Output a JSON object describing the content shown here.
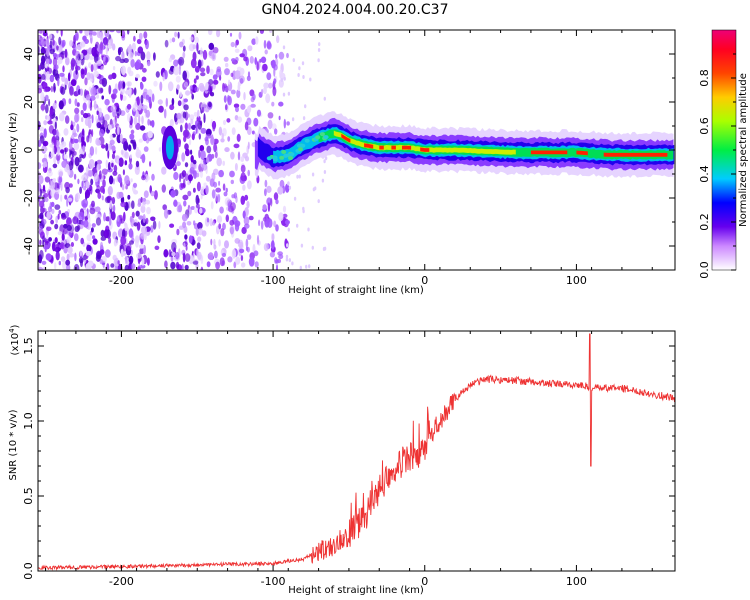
{
  "title": "GN04.2024.004.00.20.C37",
  "chart_data": [
    {
      "type": "heatmap",
      "xlabel": "Height of straight line (km)",
      "ylabel": "Frequency (Hz)",
      "xlim": [
        -255,
        165
      ],
      "ylim": [
        -50,
        50
      ],
      "xticks": [
        -200,
        -100,
        0,
        100
      ],
      "yticks": [
        -40,
        -20,
        0,
        20,
        40
      ],
      "colorbar": {
        "label": "Normalized spectral amplitude",
        "range": [
          0,
          1
        ],
        "ticks": [
          "0.0",
          "0.2",
          "0.4",
          "0.6",
          "0.8"
        ],
        "tick_values": [
          0.0,
          0.2,
          0.4,
          0.6,
          0.8
        ],
        "colormap": "rainbow (white-violet-blue-cyan-green-yellow-orange-red-magenta)"
      },
      "features": {
        "noise_region_x": [
          -255,
          -95
        ],
        "signal_trace": {
          "x": [
            -110,
            -100,
            -90,
            -80,
            -70,
            -60,
            -55,
            -50,
            -40,
            -30,
            -20,
            -10,
            0,
            20,
            60,
            100,
            120,
            165
          ],
          "y": [
            1,
            -3,
            -2,
            2,
            5,
            7,
            6,
            4,
            2,
            1,
            1,
            1,
            0,
            0,
            -1,
            -1,
            -2,
            -2
          ]
        }
      }
    },
    {
      "type": "line",
      "xlabel": "Height of straight line (km)",
      "ylabel": "SNR (10 * v/v)",
      "scale_label": "(x10",
      "scale_exp": "4",
      "scale_close": ")",
      "xlim": [
        -255,
        165
      ],
      "ylim": [
        0,
        1.6
      ],
      "xticks": [
        -200,
        -100,
        0,
        100
      ],
      "yticks": [
        "0.0",
        "0.5",
        "1.0",
        "1.5"
      ],
      "ytick_values": [
        0.0,
        0.5,
        1.0,
        1.5
      ],
      "color": "#ee3333",
      "series": [
        {
          "x": [
            -255,
            -200,
            -150,
            -100,
            -80,
            -60,
            -50,
            -40,
            -30,
            -20,
            -10,
            0,
            10,
            20,
            30,
            40,
            60,
            80,
            100,
            108,
            110,
            130,
            150,
            165
          ],
          "values": [
            0.02,
            0.03,
            0.04,
            0.05,
            0.08,
            0.18,
            0.25,
            0.35,
            0.55,
            0.7,
            0.75,
            0.8,
            1.0,
            1.15,
            1.24,
            1.28,
            1.27,
            1.25,
            1.24,
            1.23,
            1.22,
            1.22,
            1.18,
            1.15
          ]
        }
      ],
      "spike": {
        "x": 109,
        "max": 1.58,
        "min": 0.7
      }
    }
  ]
}
